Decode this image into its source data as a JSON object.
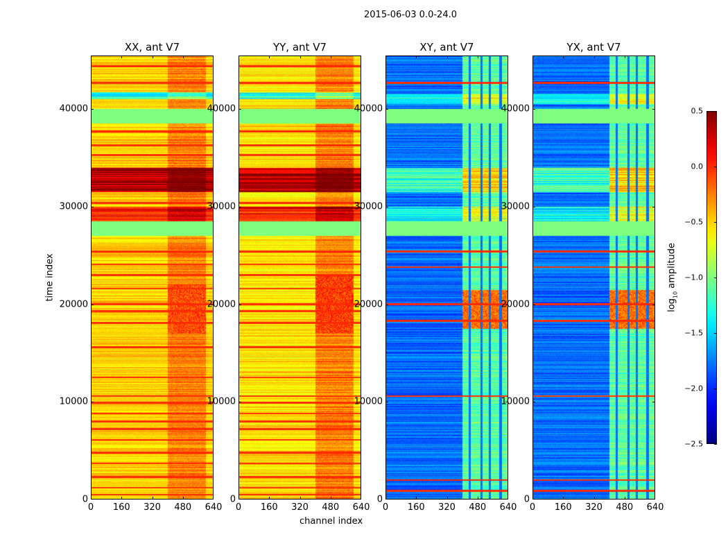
{
  "chart_data": {
    "type": "heatmap",
    "title": "2015-06-03 0.0-24.0",
    "xlabel": "channel index",
    "ylabel": "time index",
    "xlim": [
      0,
      640
    ],
    "ylim": [
      0,
      45500
    ],
    "xticks": [
      "0",
      "160",
      "320",
      "480",
      "640"
    ],
    "xtick_values": [
      0,
      160,
      320,
      480,
      640
    ],
    "yticks": [
      "0",
      "10000",
      "20000",
      "30000",
      "40000"
    ],
    "ytick_values": [
      0,
      10000,
      20000,
      30000,
      40000
    ],
    "colorbar": {
      "label_prefix": "log",
      "label_sub": "10",
      "label_suffix": " amplitude",
      "range": [
        -2.5,
        0.5
      ],
      "ticks": [
        "0.5",
        "0.0",
        "−0.5",
        "−1.0",
        "−1.5",
        "−2.0",
        "−2.5"
      ],
      "tick_values": [
        0.5,
        0.0,
        -0.5,
        -1.0,
        -1.5,
        -2.0,
        -2.5
      ],
      "colormap": "jet"
    },
    "panels": [
      {
        "title": "XX, ant V7",
        "base_level": -0.5,
        "high_channel_range": [
          400,
          600
        ],
        "high_boost": 0.25,
        "gap_channels": [],
        "bands": [
          {
            "t": [
              17000,
              22000
            ],
            "level": -0.1,
            "high_only": true
          },
          {
            "t": [
              27000,
              28500
            ],
            "level": -1.0,
            "uniform": true
          },
          {
            "t": [
              28500,
              30000
            ],
            "level": 0.1
          },
          {
            "t": [
              31500,
              34000
            ],
            "level": 0.35
          },
          {
            "t": [
              38500,
              40000
            ],
            "level": -1.0,
            "uniform": true
          },
          {
            "t": [
              41000,
              41700
            ],
            "level": -1.3
          }
        ],
        "lines": [
          500,
          1200,
          2300,
          3700,
          4800,
          6100,
          7200,
          8000,
          8800,
          9900,
          10600,
          12500,
          15600,
          18100,
          19300,
          20000,
          21600,
          23000,
          24100,
          25400,
          30400,
          35300,
          36300,
          37700,
          42700,
          44400
        ]
      },
      {
        "title": "YY, ant V7",
        "base_level": -0.55,
        "high_channel_range": [
          400,
          600
        ],
        "high_boost": 0.3,
        "gap_channels": [],
        "bands": [
          {
            "t": [
              17000,
              23000
            ],
            "level": -0.05,
            "high_only": true
          },
          {
            "t": [
              27000,
              28500
            ],
            "level": -1.0,
            "uniform": true
          },
          {
            "t": [
              28500,
              30000
            ],
            "level": 0.1
          },
          {
            "t": [
              31500,
              34000
            ],
            "level": 0.35
          },
          {
            "t": [
              38500,
              40000
            ],
            "level": -1.0,
            "uniform": true
          },
          {
            "t": [
              41000,
              41700
            ],
            "level": -1.3
          }
        ],
        "lines": [
          500,
          1200,
          2300,
          3700,
          4800,
          6100,
          7200,
          8000,
          8800,
          9900,
          10600,
          12500,
          15600,
          18100,
          19300,
          20000,
          21600,
          23000,
          24100,
          25400,
          30400,
          35300,
          36300,
          37700,
          42700,
          44400
        ]
      },
      {
        "title": "XY, ant V7",
        "base_level": -1.8,
        "high_channel_range": [
          400,
          640
        ],
        "high_boost": 0.7,
        "gap_channels": [
          440,
          500,
          545,
          600
        ],
        "bands": [
          {
            "t": [
              17500,
              21500
            ],
            "level": -0.2,
            "high_only": true
          },
          {
            "t": [
              27000,
              28500
            ],
            "level": -1.0,
            "uniform": true
          },
          {
            "t": [
              28500,
              30000
            ],
            "level": -1.4
          },
          {
            "t": [
              31500,
              34000
            ],
            "level": -1.2
          },
          {
            "t": [
              38500,
              40000
            ],
            "level": -1.0,
            "uniform": true
          },
          {
            "t": [
              40500,
              41500
            ],
            "level": -1.3
          }
        ],
        "lines": [
          900,
          2000,
          10600,
          18300,
          20000,
          23800,
          25400,
          42700
        ]
      },
      {
        "title": "YX, ant V7",
        "base_level": -1.8,
        "high_channel_range": [
          400,
          640
        ],
        "high_boost": 0.7,
        "gap_channels": [
          440,
          500,
          545,
          600
        ],
        "bands": [
          {
            "t": [
              17500,
              21500
            ],
            "level": -0.2,
            "high_only": true
          },
          {
            "t": [
              27000,
              28500
            ],
            "level": -1.0,
            "uniform": true
          },
          {
            "t": [
              28500,
              30000
            ],
            "level": -1.4
          },
          {
            "t": [
              31500,
              34000
            ],
            "level": -1.2
          },
          {
            "t": [
              38500,
              40000
            ],
            "level": -1.0,
            "uniform": true
          },
          {
            "t": [
              40500,
              41500
            ],
            "level": -1.3
          }
        ],
        "lines": [
          900,
          2000,
          10600,
          18300,
          20000,
          23800,
          25400,
          42700
        ]
      }
    ]
  }
}
